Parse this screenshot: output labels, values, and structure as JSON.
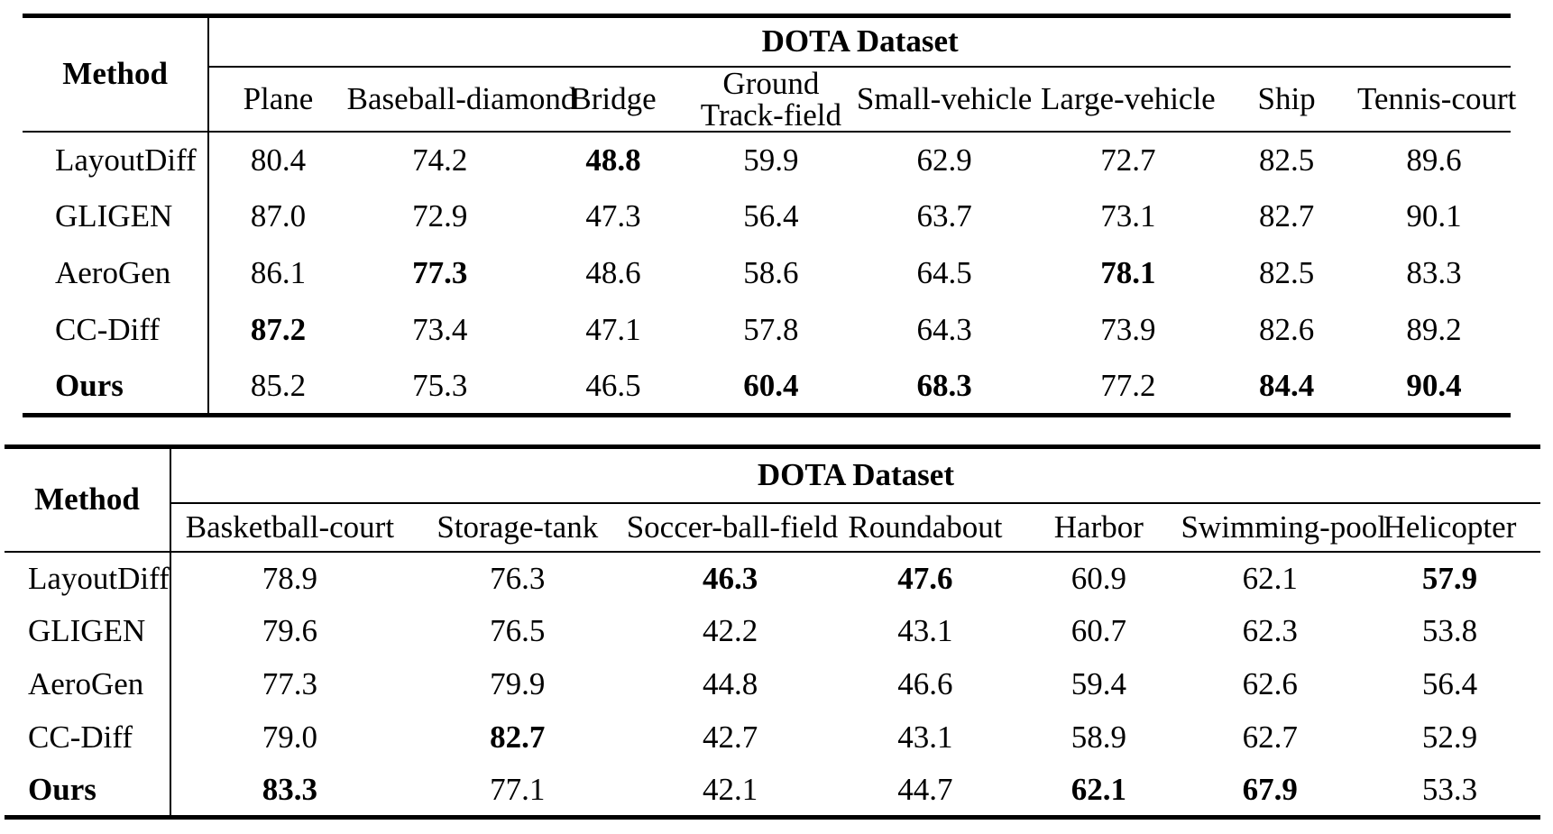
{
  "page": {
    "background": "#ffffff",
    "text_color": "#000000"
  },
  "tables": [
    {
      "title": "DOTA Dataset",
      "method_header": "Method",
      "columns": [
        "Plane",
        "Baseball-diamond",
        "Bridge",
        "Ground\nTrack-field",
        "Small-vehicle",
        "Large-vehicle",
        "Ship",
        "Tennis-court"
      ],
      "rows": [
        {
          "method": "LayoutDiff",
          "method_bold": false,
          "values": [
            "80.4",
            "74.2",
            "48.8",
            "59.9",
            "62.9",
            "72.7",
            "82.5",
            "89.6"
          ],
          "bold": [
            false,
            false,
            true,
            false,
            false,
            false,
            false,
            false
          ]
        },
        {
          "method": "GLIGEN",
          "method_bold": false,
          "values": [
            "87.0",
            "72.9",
            "47.3",
            "56.4",
            "63.7",
            "73.1",
            "82.7",
            "90.1"
          ],
          "bold": [
            false,
            false,
            false,
            false,
            false,
            false,
            false,
            false
          ]
        },
        {
          "method": "AeroGen",
          "method_bold": false,
          "values": [
            "86.1",
            "77.3",
            "48.6",
            "58.6",
            "64.5",
            "78.1",
            "82.5",
            "83.3"
          ],
          "bold": [
            false,
            true,
            false,
            false,
            false,
            true,
            false,
            false
          ]
        },
        {
          "method": "CC-Diff",
          "method_bold": false,
          "values": [
            "87.2",
            "73.4",
            "47.1",
            "57.8",
            "64.3",
            "73.9",
            "82.6",
            "89.2"
          ],
          "bold": [
            true,
            false,
            false,
            false,
            false,
            false,
            false,
            false
          ]
        },
        {
          "method": "Ours",
          "method_bold": true,
          "values": [
            "85.2",
            "75.3",
            "46.5",
            "60.4",
            "68.3",
            "77.2",
            "84.4",
            "90.4"
          ],
          "bold": [
            false,
            false,
            false,
            true,
            true,
            false,
            true,
            true
          ]
        }
      ]
    },
    {
      "title": "DOTA Dataset",
      "method_header": "Method",
      "columns": [
        "Basketball-court",
        "Storage-tank",
        "Soccer-ball-field",
        "Roundabout",
        "Harbor",
        "Swimming-pool",
        "Helicopter"
      ],
      "rows": [
        {
          "method": "LayoutDiff",
          "method_bold": false,
          "values": [
            "78.9",
            "76.3",
            "46.3",
            "47.6",
            "60.9",
            "62.1",
            "57.9"
          ],
          "bold": [
            false,
            false,
            true,
            true,
            false,
            false,
            true
          ]
        },
        {
          "method": "GLIGEN",
          "method_bold": false,
          "values": [
            "79.6",
            "76.5",
            "42.2",
            "43.1",
            "60.7",
            "62.3",
            "53.8"
          ],
          "bold": [
            false,
            false,
            false,
            false,
            false,
            false,
            false
          ]
        },
        {
          "method": "AeroGen",
          "method_bold": false,
          "values": [
            "77.3",
            "79.9",
            "44.8",
            "46.6",
            "59.4",
            "62.6",
            "56.4"
          ],
          "bold": [
            false,
            false,
            false,
            false,
            false,
            false,
            false
          ]
        },
        {
          "method": "CC-Diff",
          "method_bold": false,
          "values": [
            "79.0",
            "82.7",
            "42.7",
            "43.1",
            "58.9",
            "62.7",
            "52.9"
          ],
          "bold": [
            false,
            true,
            false,
            false,
            false,
            false,
            false
          ]
        },
        {
          "method": "Ours",
          "method_bold": true,
          "values": [
            "83.3",
            "77.1",
            "42.1",
            "44.7",
            "62.1",
            "67.9",
            "53.3"
          ],
          "bold": [
            true,
            false,
            false,
            false,
            true,
            true,
            false
          ]
        }
      ]
    }
  ]
}
